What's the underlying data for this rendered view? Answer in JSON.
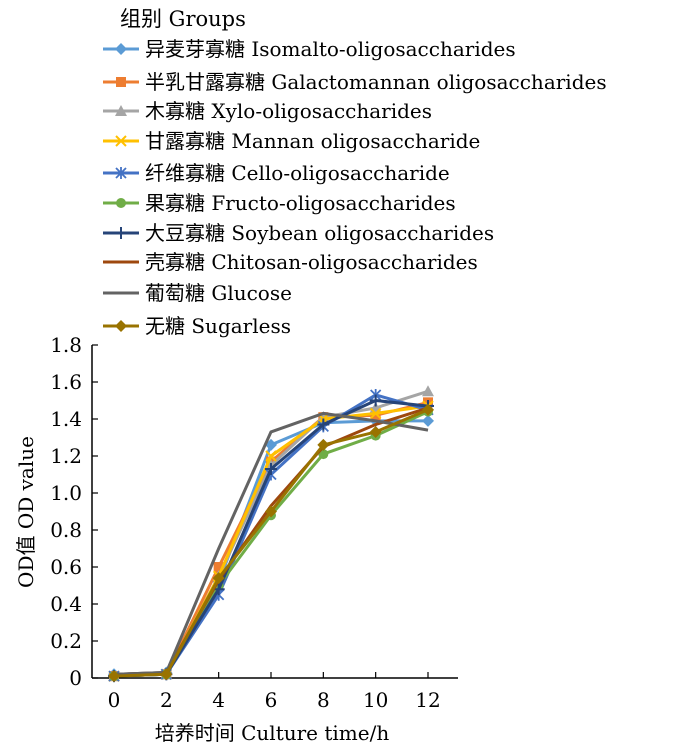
{
  "chart_data": {
    "type": "line",
    "title": "",
    "legend_title": "组别 Groups",
    "legend_position": "top",
    "xlabel": "培养时间  Culture time/h",
    "ylabel": "OD值  OD value",
    "x": [
      0,
      2,
      4,
      6,
      8,
      10,
      12
    ],
    "x_ticks": [
      "0",
      "2",
      "4",
      "6",
      "8",
      "10",
      "12"
    ],
    "y_ticks": [
      "0",
      "0.2",
      "0.4",
      "0.6",
      "0.8",
      "1.0",
      "1.2",
      "1.4",
      "1.6",
      "1.8"
    ],
    "xlim": [
      0,
      12
    ],
    "ylim": [
      0,
      1.8
    ],
    "grid": false,
    "series": [
      {
        "name": "异麦芽寡糖  Isomalto-oligosaccharides",
        "color": "#5B9BD5",
        "marker": "diamond",
        "values": [
          0.02,
          0.03,
          0.52,
          1.26,
          1.38,
          1.39,
          1.39
        ]
      },
      {
        "name": "半乳甘露寡糖  Galactomannan oligosaccharides",
        "color": "#ED7D31",
        "marker": "square",
        "values": [
          0.01,
          0.02,
          0.6,
          1.17,
          1.41,
          1.42,
          1.49
        ]
      },
      {
        "name": "木寡糖  Xylo-oligosaccharides",
        "color": "#A5A5A5",
        "marker": "triangle",
        "values": [
          0.01,
          0.02,
          0.55,
          1.15,
          1.41,
          1.46,
          1.55
        ]
      },
      {
        "name": "甘露寡糖  Mannan oligosaccharide",
        "color": "#FFC000",
        "marker": "x",
        "values": [
          0.01,
          0.02,
          0.55,
          1.2,
          1.4,
          1.43,
          1.47
        ]
      },
      {
        "name": "纤维寡糖  Cello-oligosaccharide",
        "color": "#4472C4",
        "marker": "asterisk",
        "values": [
          0.01,
          0.02,
          0.45,
          1.1,
          1.36,
          1.53,
          1.45
        ]
      },
      {
        "name": "果寡糖  Fructo-oligosaccharides",
        "color": "#70AD47",
        "marker": "circle",
        "values": [
          0.01,
          0.02,
          0.5,
          0.88,
          1.21,
          1.31,
          1.44
        ]
      },
      {
        "name": "大豆寡糖  Soybean oligosaccharides",
        "color": "#264478",
        "marker": "plus",
        "values": [
          0.01,
          0.02,
          0.48,
          1.13,
          1.37,
          1.5,
          1.47
        ]
      },
      {
        "name": "壳寡糖  Chitosan-oligosaccharides",
        "color": "#9E480E",
        "marker": "none",
        "values": [
          0.02,
          0.03,
          0.53,
          0.93,
          1.25,
          1.37,
          1.46
        ]
      },
      {
        "name": "葡萄糖  Glucose",
        "color": "#636363",
        "marker": "none",
        "values": [
          0.02,
          0.03,
          0.7,
          1.33,
          1.43,
          1.39,
          1.34
        ]
      },
      {
        "name": "无糖  Sugarless",
        "color": "#997300",
        "marker": "diamond",
        "values": [
          0.01,
          0.02,
          0.54,
          0.9,
          1.26,
          1.33,
          1.45
        ]
      }
    ]
  }
}
